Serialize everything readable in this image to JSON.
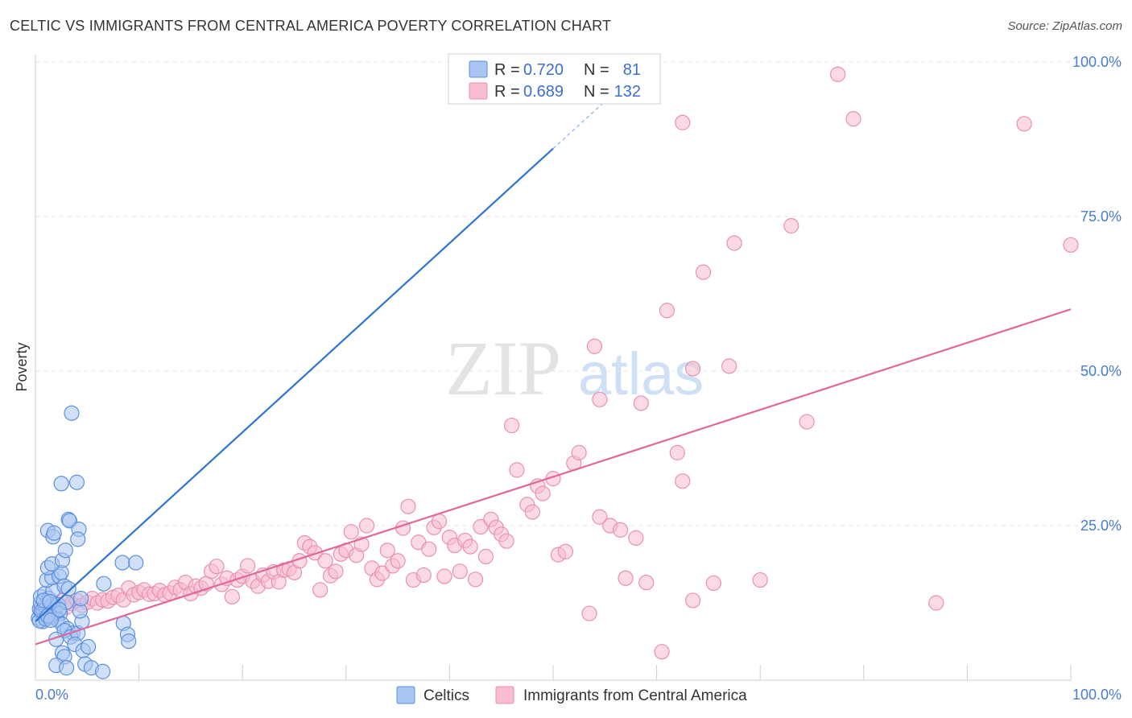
{
  "title": "CELTIC VS IMMIGRANTS FROM CENTRAL AMERICA POVERTY CORRELATION CHART",
  "source": "Source: ZipAtlas.com",
  "watermark": {
    "zip": "ZIP",
    "atlas": "atlas"
  },
  "colors": {
    "celtic_fill": "#a9c6f2",
    "celtic_stroke": "#5b8fdc",
    "celtic_line": "#2f74d0",
    "immig_fill": "#f7bcd0",
    "immig_stroke": "#e890b0",
    "immig_line": "#e0679a",
    "grid": "#e4e4e4",
    "tick_label": "#4a7ccc"
  },
  "legend": {
    "rows": [
      {
        "r_label": "R = ",
        "r_value": "0.720",
        "n_label": "N = ",
        "n_value": "81"
      },
      {
        "r_label": "R = ",
        "r_value": "0.689",
        "n_label": "N = ",
        "n_value": "132"
      }
    ]
  },
  "bottom_legend": [
    "Celtics",
    "Immigrants from Central America"
  ],
  "chart_data": {
    "type": "scatter",
    "title": "CELTIC VS IMMIGRANTS FROM CENTRAL AMERICA POVERTY CORRELATION CHART",
    "xlabel": "",
    "ylabel": "Poverty",
    "xlim": [
      0,
      100
    ],
    "ylim": [
      0,
      100
    ],
    "x_tick_labels": [
      "0.0%",
      "100.0%"
    ],
    "y_ticks": [
      25,
      50,
      75,
      100
    ],
    "y_tick_labels": [
      "25.0%",
      "50.0%",
      "75.0%",
      "100.0%"
    ],
    "grid": "horizontal-dashed",
    "legend_position": "top-center",
    "series": [
      {
        "name": "Celtics",
        "R": 0.72,
        "N": 81,
        "trend": {
          "x0": 0,
          "y0": 9.5,
          "x1": 50,
          "y1": 86.0,
          "dashed_to_x": 55,
          "dashed_to_y": 93.6
        },
        "points": [
          [
            0.3,
            10.0
          ],
          [
            0.4,
            11.5
          ],
          [
            0.5,
            12.5
          ],
          [
            0.6,
            10.8
          ],
          [
            0.7,
            9.5
          ],
          [
            0.8,
            11.0
          ],
          [
            0.9,
            12.0
          ],
          [
            1.0,
            10.5
          ],
          [
            1.1,
            11.8
          ],
          [
            1.2,
            12.8
          ],
          [
            1.3,
            10.2
          ],
          [
            1.4,
            11.3
          ],
          [
            1.5,
            12.1
          ],
          [
            1.6,
            10.9
          ],
          [
            1.7,
            11.6
          ],
          [
            1.8,
            12.4
          ],
          [
            1.9,
            10.7
          ],
          [
            2.0,
            11.9
          ],
          [
            0.5,
            13.5
          ],
          [
            0.9,
            14.0
          ],
          [
            1.3,
            13.2
          ],
          [
            1.7,
            14.5
          ],
          [
            2.2,
            12.2
          ],
          [
            2.4,
            10.8
          ],
          [
            1.1,
            16.2
          ],
          [
            1.6,
            16.6
          ],
          [
            2.3,
            16.8
          ],
          [
            2.5,
            17.4
          ],
          [
            2.8,
            15.2
          ],
          [
            3.2,
            14.8
          ],
          [
            1.2,
            18.2
          ],
          [
            1.6,
            18.8
          ],
          [
            2.6,
            19.4
          ],
          [
            2.9,
            21.0
          ],
          [
            1.2,
            24.2
          ],
          [
            1.7,
            23.2
          ],
          [
            1.8,
            23.8
          ],
          [
            3.2,
            26.0
          ],
          [
            3.3,
            25.8
          ],
          [
            4.2,
            24.4
          ],
          [
            4.1,
            22.8
          ],
          [
            2.5,
            31.8
          ],
          [
            4.0,
            32.0
          ],
          [
            3.5,
            43.2
          ],
          [
            1.6,
            10.2
          ],
          [
            2.1,
            9.8
          ],
          [
            2.6,
            9.0
          ],
          [
            3.1,
            8.3
          ],
          [
            3.6,
            7.6
          ],
          [
            2.8,
            8.0
          ],
          [
            3.4,
            7.0
          ],
          [
            4.1,
            7.6
          ],
          [
            4.5,
            9.5
          ],
          [
            2.0,
            6.6
          ],
          [
            3.8,
            5.8
          ],
          [
            4.6,
            4.8
          ],
          [
            5.1,
            5.4
          ],
          [
            2.6,
            4.4
          ],
          [
            2.8,
            3.8
          ],
          [
            2.0,
            2.4
          ],
          [
            3.0,
            2.0
          ],
          [
            4.8,
            2.6
          ],
          [
            5.4,
            2.0
          ],
          [
            6.5,
            1.4
          ],
          [
            4.3,
            11.2
          ],
          [
            4.4,
            13.2
          ],
          [
            3.0,
            12.6
          ],
          [
            6.6,
            15.6
          ],
          [
            8.5,
            9.2
          ],
          [
            8.9,
            7.4
          ],
          [
            9.0,
            6.3
          ],
          [
            8.4,
            19.0
          ],
          [
            9.7,
            19.0
          ],
          [
            0.4,
            9.6
          ],
          [
            0.6,
            11.2
          ],
          [
            0.8,
            12.9
          ],
          [
            1.0,
            9.9
          ],
          [
            1.2,
            10.4
          ],
          [
            1.4,
            12.7
          ],
          [
            1.5,
            9.7
          ],
          [
            2.3,
            11.4
          ]
        ]
      },
      {
        "name": "Immigrants from Central America",
        "R": 0.689,
        "N": 132,
        "trend": {
          "x0": 0,
          "y0": 5.8,
          "x1": 100,
          "y1": 60.0
        },
        "points": [
          [
            0.5,
            11.5
          ],
          [
            1.0,
            12.2
          ],
          [
            1.5,
            12.6
          ],
          [
            2.0,
            12.0
          ],
          [
            2.5,
            12.8
          ],
          [
            3.0,
            11.8
          ],
          [
            3.5,
            12.4
          ],
          [
            4.0,
            12.9
          ],
          [
            4.5,
            12.1
          ],
          [
            5.0,
            12.6
          ],
          [
            5.5,
            13.2
          ],
          [
            6.0,
            12.5
          ],
          [
            6.5,
            13.0
          ],
          [
            7.0,
            12.8
          ],
          [
            7.5,
            13.4
          ],
          [
            8.0,
            13.7
          ],
          [
            8.5,
            13.0
          ],
          [
            9.0,
            14.9
          ],
          [
            9.5,
            13.8
          ],
          [
            10.0,
            14.2
          ],
          [
            10.5,
            14.6
          ],
          [
            11.0,
            13.9
          ],
          [
            11.5,
            14.0
          ],
          [
            12.0,
            14.5
          ],
          [
            12.5,
            13.8
          ],
          [
            13.0,
            14.1
          ],
          [
            13.5,
            15.0
          ],
          [
            14.0,
            14.6
          ],
          [
            14.5,
            15.8
          ],
          [
            15.0,
            14.0
          ],
          [
            15.5,
            15.2
          ],
          [
            16.0,
            14.9
          ],
          [
            16.5,
            15.6
          ],
          [
            17.0,
            17.6
          ],
          [
            17.5,
            18.4
          ],
          [
            18.0,
            15.5
          ],
          [
            18.5,
            16.5
          ],
          [
            19.0,
            13.5
          ],
          [
            19.5,
            16.2
          ],
          [
            20.0,
            16.8
          ],
          [
            20.5,
            18.5
          ],
          [
            21.0,
            16.0
          ],
          [
            21.5,
            15.2
          ],
          [
            22.0,
            17.0
          ],
          [
            22.5,
            16.0
          ],
          [
            23.0,
            17.5
          ],
          [
            23.5,
            15.9
          ],
          [
            24.0,
            17.8
          ],
          [
            24.5,
            18.0
          ],
          [
            25.0,
            17.4
          ],
          [
            25.5,
            19.3
          ],
          [
            26.0,
            22.2
          ],
          [
            26.5,
            21.6
          ],
          [
            27.0,
            20.6
          ],
          [
            27.5,
            14.6
          ],
          [
            28.0,
            19.3
          ],
          [
            28.5,
            16.9
          ],
          [
            29.0,
            17.6
          ],
          [
            29.5,
            20.4
          ],
          [
            30.0,
            21.0
          ],
          [
            30.5,
            24.0
          ],
          [
            31.0,
            20.2
          ],
          [
            31.5,
            22.0
          ],
          [
            32.0,
            25.0
          ],
          [
            32.5,
            18.1
          ],
          [
            33.0,
            16.3
          ],
          [
            33.5,
            17.3
          ],
          [
            34.0,
            21.0
          ],
          [
            34.5,
            18.5
          ],
          [
            35.0,
            19.3
          ],
          [
            35.5,
            24.6
          ],
          [
            36.0,
            28.1
          ],
          [
            36.5,
            16.2
          ],
          [
            37.0,
            22.3
          ],
          [
            37.5,
            17.0
          ],
          [
            38.0,
            21.2
          ],
          [
            38.5,
            24.7
          ],
          [
            39.0,
            25.7
          ],
          [
            39.5,
            16.8
          ],
          [
            40.0,
            23.1
          ],
          [
            40.5,
            21.8
          ],
          [
            41.0,
            17.6
          ],
          [
            41.5,
            22.6
          ],
          [
            42.0,
            21.6
          ],
          [
            42.5,
            16.3
          ],
          [
            43.0,
            24.8
          ],
          [
            43.5,
            20.0
          ],
          [
            44.0,
            26.0
          ],
          [
            44.5,
            24.7
          ],
          [
            45.0,
            23.6
          ],
          [
            45.5,
            22.5
          ],
          [
            46.0,
            41.2
          ],
          [
            46.5,
            34.0
          ],
          [
            47.5,
            28.4
          ],
          [
            48.0,
            27.2
          ],
          [
            48.5,
            31.4
          ],
          [
            49.0,
            30.2
          ],
          [
            50.0,
            32.6
          ],
          [
            50.5,
            20.3
          ],
          [
            51.2,
            20.8
          ],
          [
            52.0,
            35.1
          ],
          [
            52.5,
            36.8
          ],
          [
            53.5,
            10.8
          ],
          [
            54.0,
            54.0
          ],
          [
            54.5,
            26.4
          ],
          [
            54.5,
            45.4
          ],
          [
            55.5,
            25.0
          ],
          [
            56.5,
            24.3
          ],
          [
            57.0,
            16.5
          ],
          [
            58.0,
            23.0
          ],
          [
            58.5,
            44.8
          ],
          [
            59.0,
            15.8
          ],
          [
            60.5,
            4.6
          ],
          [
            61.0,
            59.8
          ],
          [
            62.0,
            36.8
          ],
          [
            62.5,
            32.2
          ],
          [
            62.5,
            90.2
          ],
          [
            63.5,
            12.9
          ],
          [
            63.5,
            50.4
          ],
          [
            64.5,
            66.0
          ],
          [
            65.5,
            15.7
          ],
          [
            67.0,
            50.8
          ],
          [
            67.5,
            70.7
          ],
          [
            70.0,
            16.2
          ],
          [
            73.0,
            73.5
          ],
          [
            74.5,
            41.8
          ],
          [
            77.5,
            98.0
          ],
          [
            79.0,
            90.8
          ],
          [
            87.0,
            12.5
          ],
          [
            95.5,
            90.0
          ],
          [
            100.0,
            70.4
          ]
        ]
      }
    ]
  }
}
